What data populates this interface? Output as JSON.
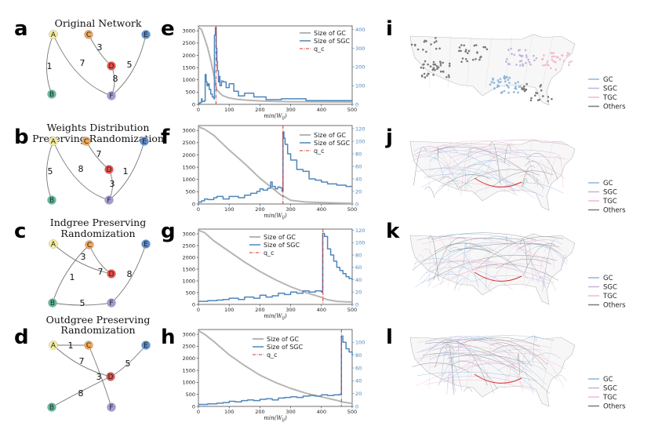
{
  "panel_labels": {
    "a": "a",
    "b": "b",
    "c": "c",
    "d": "d",
    "e": "e",
    "f": "f",
    "g": "g",
    "h": "h",
    "i": "i",
    "j": "j",
    "k": "k",
    "l": "l"
  },
  "network_panels": [
    {
      "id": "a",
      "title": [
        "Original Network"
      ],
      "nodes": [
        {
          "id": "A",
          "color": "#f5ee9a"
        },
        {
          "id": "B",
          "color": "#5fbf9c"
        },
        {
          "id": "C",
          "color": "#f0a65a"
        },
        {
          "id": "D",
          "color": "#e8524a"
        },
        {
          "id": "E",
          "color": "#5b8fd1"
        },
        {
          "id": "F",
          "color": "#a89ad6"
        }
      ],
      "edges": [
        {
          "from": "A",
          "to": "B",
          "w": "1"
        },
        {
          "from": "A",
          "to": "F",
          "w": "7"
        },
        {
          "from": "C",
          "to": "D",
          "w": "3"
        },
        {
          "from": "D",
          "to": "F",
          "w": "8"
        },
        {
          "from": "E",
          "to": "F",
          "w": "5"
        }
      ]
    },
    {
      "id": "b",
      "title": [
        "Weights Distribution",
        "Preserving Randomization"
      ],
      "nodes": [
        {
          "id": "A",
          "color": "#f5ee9a"
        },
        {
          "id": "B",
          "color": "#5fbf9c"
        },
        {
          "id": "C",
          "color": "#f0a65a"
        },
        {
          "id": "D",
          "color": "#e8524a"
        },
        {
          "id": "E",
          "color": "#5b8fd1"
        },
        {
          "id": "F",
          "color": "#a89ad6"
        }
      ],
      "edges": [
        {
          "from": "A",
          "to": "B",
          "w": "5"
        },
        {
          "from": "A",
          "to": "F",
          "w": "8"
        },
        {
          "from": "C",
          "to": "D",
          "w": "7"
        },
        {
          "from": "D",
          "to": "F",
          "w": "3"
        },
        {
          "from": "E",
          "to": "F",
          "w": "1"
        }
      ]
    },
    {
      "id": "c",
      "title": [
        "Indgree Preserving",
        "Randomization"
      ],
      "nodes": [
        {
          "id": "A",
          "color": "#f5ee9a"
        },
        {
          "id": "B",
          "color": "#5fbf9c"
        },
        {
          "id": "C",
          "color": "#f0a65a"
        },
        {
          "id": "D",
          "color": "#e8524a"
        },
        {
          "id": "E",
          "color": "#5b8fd1"
        },
        {
          "id": "F",
          "color": "#a89ad6"
        }
      ],
      "edges": [
        {
          "from": "C",
          "to": "B",
          "w": "1"
        },
        {
          "from": "A",
          "to": "D",
          "w": "3"
        },
        {
          "from": "C",
          "to": "D",
          "w": "7"
        },
        {
          "from": "E",
          "to": "F",
          "w": "8"
        },
        {
          "from": "B",
          "to": "F",
          "w": "5"
        }
      ]
    },
    {
      "id": "d",
      "title": [
        "Outdgree Preserving",
        "Randomization"
      ],
      "nodes": [
        {
          "id": "A",
          "color": "#f5ee9a"
        },
        {
          "id": "B",
          "color": "#5fbf9c"
        },
        {
          "id": "C",
          "color": "#f0a65a"
        },
        {
          "id": "D",
          "color": "#e8524a"
        },
        {
          "id": "E",
          "color": "#5b8fd1"
        },
        {
          "id": "F",
          "color": "#a89ad6"
        }
      ],
      "edges": [
        {
          "from": "A",
          "to": "C",
          "w": "1"
        },
        {
          "from": "A",
          "to": "D",
          "w": "7"
        },
        {
          "from": "C",
          "to": "F",
          "w": "3"
        },
        {
          "from": "D",
          "to": "E",
          "w": "5"
        },
        {
          "from": "D",
          "to": "B",
          "w": "8"
        }
      ]
    }
  ],
  "chart_data": [
    {
      "id": "e",
      "type": "line",
      "xlabel": "min(W_ij)",
      "xlim": [
        0,
        500
      ],
      "xticks": [
        0,
        100,
        200,
        300,
        400,
        500
      ],
      "ylim_left": [
        0,
        3200
      ],
      "yticks_left": [
        0,
        500,
        1000,
        1500,
        2000,
        2500,
        3000
      ],
      "ylim_right": [
        0,
        420
      ],
      "yticks_right": [
        0,
        100,
        200,
        300,
        400
      ],
      "legend": {
        "position": "upper-right",
        "entries": [
          "Size of GC",
          "Size of SGC",
          "q_c"
        ]
      },
      "qc": 57,
      "series": [
        {
          "name": "Size of GC",
          "axis": "left",
          "color": "#b5b5b5",
          "x": [
            0,
            10,
            20,
            30,
            40,
            50,
            55,
            60,
            70,
            80,
            100,
            130,
            160,
            200,
            250,
            300,
            400,
            500
          ],
          "y": [
            3150,
            3050,
            2700,
            2300,
            1800,
            1200,
            850,
            600,
            450,
            350,
            260,
            200,
            170,
            140,
            120,
            110,
            100,
            95
          ]
        },
        {
          "name": "Size of SGC",
          "axis": "right",
          "color": "#4f86bb",
          "x": [
            0,
            5,
            10,
            12,
            20,
            22,
            25,
            28,
            32,
            35,
            40,
            45,
            50,
            52,
            55,
            58,
            60,
            62,
            65,
            68,
            70,
            75,
            80,
            90,
            100,
            115,
            130,
            150,
            180,
            220,
            270,
            350,
            500
          ],
          "y": [
            5,
            10,
            30,
            15,
            20,
            160,
            120,
            100,
            110,
            80,
            55,
            40,
            30,
            370,
            410,
            300,
            230,
            180,
            120,
            150,
            100,
            125,
            120,
            90,
            110,
            70,
            45,
            60,
            40,
            25,
            30,
            20,
            15
          ]
        }
      ]
    },
    {
      "id": "f",
      "type": "line",
      "xlabel": "min(W_ij)",
      "xlim": [
        0,
        500
      ],
      "xticks": [
        0,
        100,
        200,
        300,
        400,
        500
      ],
      "ylim_left": [
        0,
        3200
      ],
      "yticks_left": [
        0,
        500,
        1000,
        1500,
        2000,
        2500,
        3000
      ],
      "ylim_right": [
        0,
        125
      ],
      "yticks_right": [
        0,
        20,
        40,
        60,
        80,
        100,
        120
      ],
      "legend": {
        "position": "upper-right",
        "entries": [
          "Size of GC",
          "Size of SGC",
          "q_c"
        ]
      },
      "qc": 275,
      "series": [
        {
          "name": "Size of GC",
          "axis": "left",
          "color": "#b5b5b5",
          "x": [
            0,
            20,
            50,
            100,
            150,
            200,
            250,
            270,
            280,
            300,
            350,
            400,
            450,
            500
          ],
          "y": [
            3150,
            3050,
            2800,
            2200,
            1650,
            1050,
            550,
            350,
            300,
            150,
            80,
            60,
            40,
            30
          ]
        },
        {
          "name": "Size of SGC",
          "axis": "right",
          "color": "#4f86bb",
          "x": [
            0,
            10,
            20,
            30,
            50,
            60,
            80,
            100,
            130,
            150,
            170,
            190,
            200,
            210,
            225,
            235,
            240,
            250,
            258,
            265,
            272,
            275,
            278,
            282,
            290,
            300,
            320,
            340,
            360,
            380,
            400,
            420,
            450,
            480,
            500
          ],
          "y": [
            3,
            5,
            8,
            7,
            10,
            12,
            8,
            12,
            10,
            14,
            17,
            20,
            24,
            22,
            25,
            35,
            28,
            24,
            27,
            26,
            20,
            115,
            105,
            95,
            80,
            70,
            55,
            52,
            40,
            38,
            35,
            32,
            30,
            28,
            28
          ]
        }
      ]
    },
    {
      "id": "g",
      "type": "line",
      "xlabel": "min(W_ij)",
      "xlim": [
        0,
        500
      ],
      "xticks": [
        0,
        100,
        200,
        300,
        400,
        500
      ],
      "ylim_left": [
        0,
        3200
      ],
      "yticks_left": [
        0,
        500,
        1000,
        1500,
        2000,
        2500,
        3000
      ],
      "ylim_right": [
        0,
        122
      ],
      "yticks_right": [
        0,
        20,
        40,
        60,
        80,
        100,
        120
      ],
      "legend": {
        "position": "center",
        "entries": [
          "Size of GC",
          "Size of SGC",
          "q_c"
        ]
      },
      "qc": 405,
      "series": [
        {
          "name": "Size of GC",
          "axis": "left",
          "color": "#b5b5b5",
          "x": [
            0,
            20,
            50,
            100,
            150,
            200,
            250,
            300,
            350,
            380,
            400,
            420,
            450,
            480,
            500
          ],
          "y": [
            3150,
            3050,
            2700,
            2250,
            1800,
            1400,
            1050,
            750,
            500,
            380,
            300,
            200,
            130,
            110,
            100
          ]
        },
        {
          "name": "Size of SGC",
          "axis": "right",
          "color": "#4f86bb",
          "x": [
            0,
            30,
            60,
            80,
            100,
            130,
            150,
            180,
            200,
            220,
            240,
            260,
            280,
            300,
            320,
            340,
            360,
            380,
            400,
            404,
            410,
            420,
            430,
            440,
            450,
            460,
            470,
            480,
            490,
            500
          ],
          "y": [
            5,
            6,
            7,
            8,
            10,
            8,
            12,
            10,
            15,
            12,
            14,
            18,
            16,
            20,
            18,
            22,
            20,
            22,
            20,
            115,
            110,
            90,
            80,
            70,
            60,
            55,
            50,
            45,
            42,
            40
          ]
        }
      ]
    },
    {
      "id": "h",
      "type": "line",
      "xlabel": "min(W_ij)",
      "xlim": [
        0,
        500
      ],
      "xticks": [
        0,
        100,
        200,
        300,
        400,
        500
      ],
      "ylim_left": [
        0,
        3200
      ],
      "yticks_left": [
        0,
        500,
        1000,
        1500,
        2000,
        2500,
        3000
      ],
      "ylim_right": [
        0,
        120
      ],
      "yticks_right": [
        0,
        20,
        40,
        60,
        80,
        100
      ],
      "legend": {
        "position": "upper-center",
        "entries": [
          "Size of GC",
          "Size of SGC",
          "q_c"
        ]
      },
      "qc": 465,
      "series": [
        {
          "name": "Size of GC",
          "axis": "left",
          "color": "#b5b5b5",
          "x": [
            0,
            20,
            50,
            100,
            150,
            200,
            250,
            300,
            350,
            400,
            450,
            470,
            500
          ],
          "y": [
            3150,
            3000,
            2700,
            2150,
            1700,
            1300,
            1000,
            750,
            550,
            400,
            250,
            180,
            120
          ]
        },
        {
          "name": "Size of SGC",
          "axis": "right",
          "color": "#4f86bb",
          "x": [
            0,
            30,
            60,
            80,
            100,
            120,
            140,
            160,
            180,
            200,
            220,
            240,
            260,
            280,
            300,
            320,
            340,
            360,
            380,
            400,
            420,
            440,
            460,
            465,
            470,
            480,
            490,
            500
          ],
          "y": [
            3,
            4,
            5,
            6,
            8,
            7,
            9,
            10,
            9,
            11,
            12,
            10,
            13,
            14,
            15,
            14,
            16,
            17,
            16,
            18,
            17,
            18,
            19,
            110,
            100,
            90,
            85,
            80
          ]
        }
      ]
    }
  ],
  "maps": [
    {
      "id": "i",
      "legend": [
        "GC",
        "SGC",
        "TGC",
        "Others"
      ]
    },
    {
      "id": "j",
      "legend": [
        "GC",
        "SGC",
        "TGC",
        "Others"
      ]
    },
    {
      "id": "k",
      "legend": [
        "GC",
        "SGC",
        "TGC",
        "Others"
      ]
    },
    {
      "id": "l",
      "legend": [
        "GC",
        "SGC",
        "TGC",
        "Others"
      ]
    }
  ],
  "colors": {
    "gc": "#b5b5b5",
    "sgc": "#4f86bb",
    "qc": "#d93030",
    "map_gc": "#8fb6dc",
    "map_sgc": "#c5b3dc",
    "map_tgc": "#f4b7cf",
    "map_others": "#7a7a7a"
  }
}
